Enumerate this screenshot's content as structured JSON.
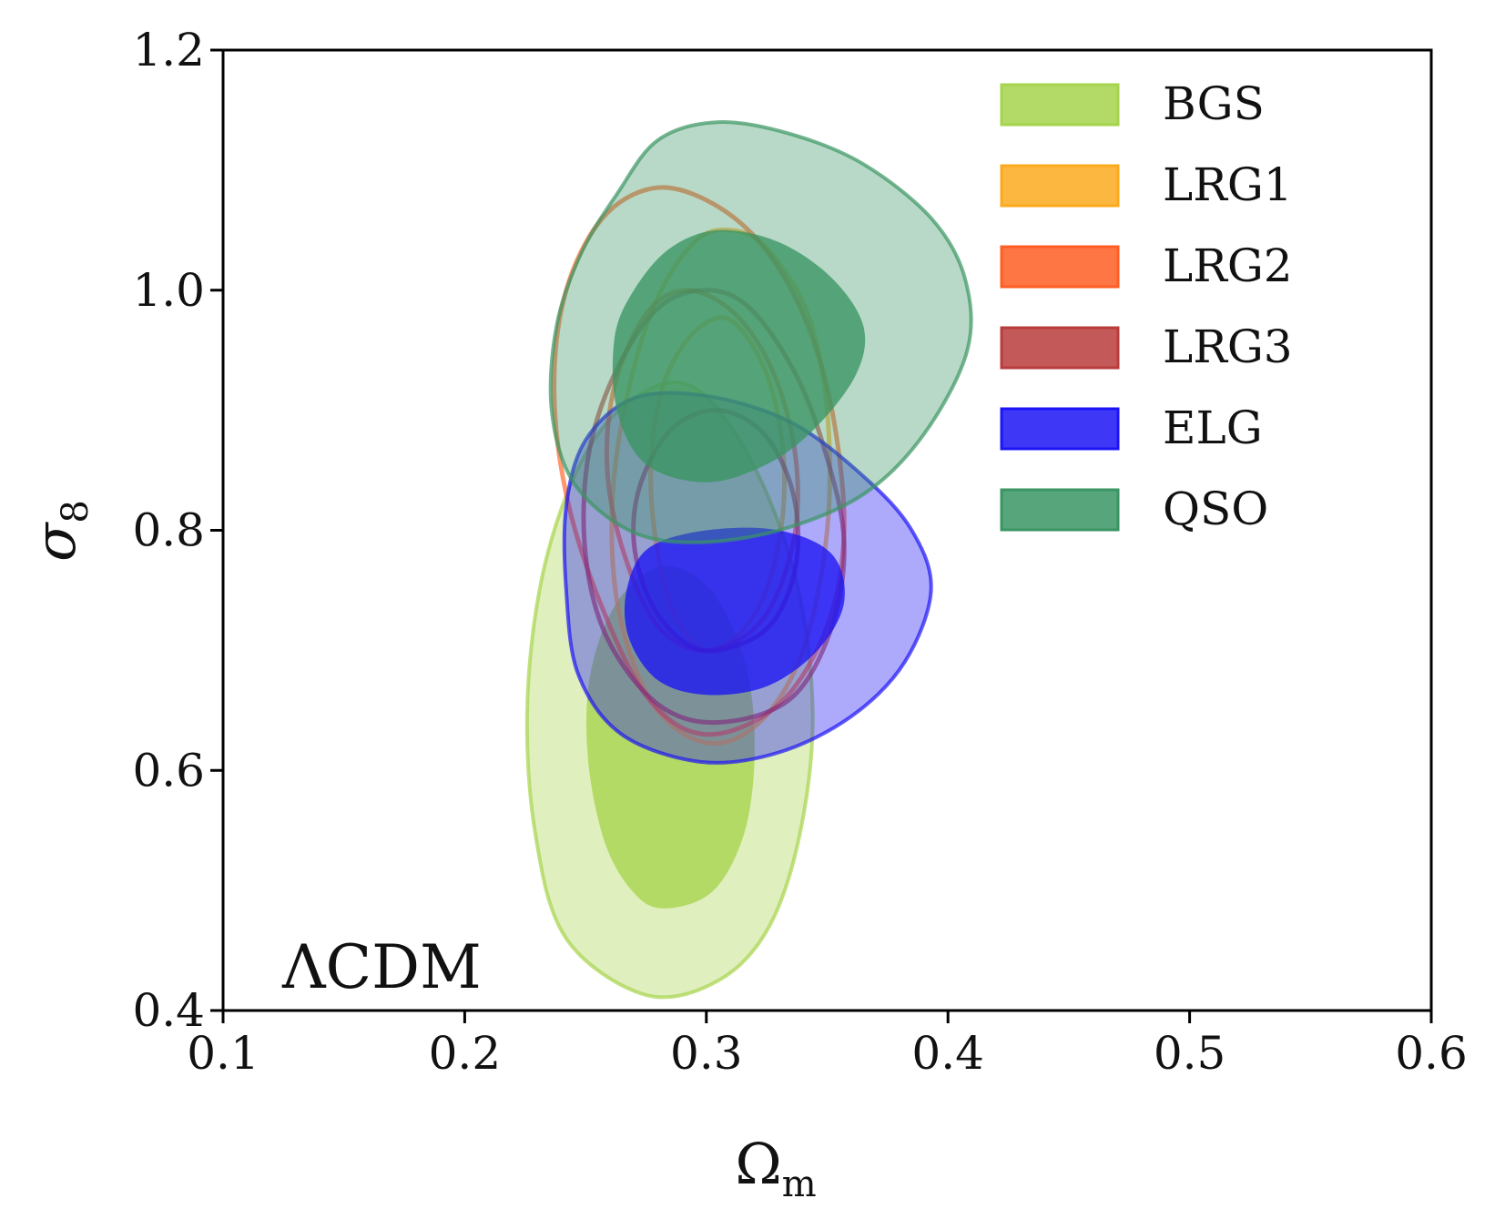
{
  "chart_data": {
    "type": "contour",
    "annotation": "ΛCDM",
    "xlabel": {
      "symbol": "Ω",
      "subscript": "m"
    },
    "ylabel": {
      "symbol": "σ",
      "subscript": "8"
    },
    "xlim": [
      0.1,
      0.6
    ],
    "ylim": [
      0.4,
      1.2
    ],
    "xticks": [
      0.1,
      0.2,
      0.3,
      0.4,
      0.5,
      0.6
    ],
    "xtick_labels": [
      "0.1",
      "0.2",
      "0.3",
      "0.4",
      "0.5",
      "0.6"
    ],
    "yticks": [
      0.4,
      0.6,
      0.8,
      1.0,
      1.2
    ],
    "ytick_labels": [
      "0.4",
      "0.6",
      "0.8",
      "1.0",
      "1.2"
    ],
    "grid": false,
    "legend_position": "top-right",
    "series": [
      {
        "name": "BGS",
        "color": "#a6d44c",
        "filled": true,
        "contours": [
          {
            "level": "outer",
            "points": [
              [
                0.275,
                0.413
              ],
              [
                0.305,
                0.425
              ],
              [
                0.326,
                0.47
              ],
              [
                0.339,
                0.55
              ],
              [
                0.344,
                0.65
              ],
              [
                0.337,
                0.76
              ],
              [
                0.318,
                0.86
              ],
              [
                0.294,
                0.92
              ],
              [
                0.27,
                0.91
              ],
              [
                0.249,
                0.86
              ],
              [
                0.233,
                0.77
              ],
              [
                0.226,
                0.66
              ],
              [
                0.229,
                0.55
              ],
              [
                0.242,
                0.46
              ]
            ]
          },
          {
            "level": "inner",
            "points": [
              [
                0.283,
                0.485
              ],
              [
                0.303,
                0.5
              ],
              [
                0.316,
                0.55
              ],
              [
                0.32,
                0.62
              ],
              [
                0.316,
                0.69
              ],
              [
                0.302,
                0.75
              ],
              [
                0.282,
                0.77
              ],
              [
                0.263,
                0.74
              ],
              [
                0.252,
                0.68
              ],
              [
                0.251,
                0.61
              ],
              [
                0.258,
                0.54
              ],
              [
                0.27,
                0.498
              ]
            ]
          }
        ]
      },
      {
        "name": "LRG1",
        "color": "#fbaa1e",
        "filled": false,
        "contours": [
          {
            "level": "outer",
            "points": [
              [
                0.3,
                0.623
              ],
              [
                0.322,
                0.64
              ],
              [
                0.34,
                0.7
              ],
              [
                0.35,
                0.8
              ],
              [
                0.35,
                0.9
              ],
              [
                0.342,
                0.98
              ],
              [
                0.325,
                1.035
              ],
              [
                0.31,
                1.05
              ],
              [
                0.295,
                1.04
              ],
              [
                0.279,
                0.99
              ],
              [
                0.267,
                0.91
              ],
              [
                0.261,
                0.82
              ],
              [
                0.264,
                0.73
              ],
              [
                0.278,
                0.655
              ]
            ]
          },
          {
            "level": "inner",
            "points": [
              [
                0.302,
                0.7
              ],
              [
                0.32,
                0.73
              ],
              [
                0.33,
                0.79
              ],
              [
                0.332,
                0.86
              ],
              [
                0.325,
                0.93
              ],
              [
                0.31,
                0.975
              ],
              [
                0.295,
                0.965
              ],
              [
                0.282,
                0.92
              ],
              [
                0.277,
                0.85
              ],
              [
                0.28,
                0.78
              ],
              [
                0.288,
                0.725
              ]
            ]
          }
        ]
      },
      {
        "name": "LRG2",
        "color": "#ff5e24",
        "filled": false,
        "contours": [
          {
            "level": "outer",
            "points": [
              [
                0.3,
                0.63
              ],
              [
                0.33,
                0.655
              ],
              [
                0.35,
                0.72
              ],
              [
                0.357,
                0.8
              ],
              [
                0.352,
                0.9
              ],
              [
                0.34,
                0.98
              ],
              [
                0.322,
                1.04
              ],
              [
                0.3,
                1.075
              ],
              [
                0.278,
                1.085
              ],
              [
                0.257,
                1.06
              ],
              [
                0.242,
                1.0
              ],
              [
                0.237,
                0.92
              ],
              [
                0.242,
                0.83
              ],
              [
                0.256,
                0.74
              ],
              [
                0.276,
                0.66
              ]
            ]
          },
          {
            "level": "inner",
            "points": [
              [
                0.3,
                0.7
              ],
              [
                0.323,
                0.725
              ],
              [
                0.336,
                0.79
              ],
              [
                0.337,
                0.86
              ],
              [
                0.328,
                0.93
              ],
              [
                0.312,
                0.98
              ],
              [
                0.292,
                1.0
              ],
              [
                0.275,
                0.98
              ],
              [
                0.262,
                0.92
              ],
              [
                0.259,
                0.85
              ],
              [
                0.266,
                0.78
              ],
              [
                0.28,
                0.72
              ]
            ]
          }
        ]
      },
      {
        "name": "LRG3",
        "color": "#b93c3c",
        "filled": false,
        "contours": [
          {
            "level": "outer",
            "points": [
              [
                0.305,
                0.64
              ],
              [
                0.335,
                0.66
              ],
              [
                0.352,
                0.72
              ],
              [
                0.357,
                0.79
              ],
              [
                0.35,
                0.86
              ],
              [
                0.337,
                0.93
              ],
              [
                0.318,
                0.985
              ],
              [
                0.3,
                1.0
              ],
              [
                0.28,
                0.985
              ],
              [
                0.262,
                0.93
              ],
              [
                0.251,
                0.86
              ],
              [
                0.25,
                0.78
              ],
              [
                0.259,
                0.71
              ],
              [
                0.28,
                0.655
              ]
            ]
          },
          {
            "level": "inner",
            "points": [
              [
                0.305,
                0.7
              ],
              [
                0.326,
                0.72
              ],
              [
                0.337,
                0.77
              ],
              [
                0.336,
                0.83
              ],
              [
                0.324,
                0.88
              ],
              [
                0.305,
                0.9
              ],
              [
                0.286,
                0.885
              ],
              [
                0.273,
                0.84
              ],
              [
                0.27,
                0.79
              ],
              [
                0.277,
                0.74
              ],
              [
                0.29,
                0.708
              ]
            ]
          }
        ]
      },
      {
        "name": "ELG",
        "color": "#1c14f5",
        "filled": true,
        "contours": [
          {
            "level": "outer",
            "points": [
              [
                0.298,
                0.607
              ],
              [
                0.33,
                0.615
              ],
              [
                0.36,
                0.645
              ],
              [
                0.382,
                0.69
              ],
              [
                0.393,
                0.75
              ],
              [
                0.385,
                0.8
              ],
              [
                0.365,
                0.845
              ],
              [
                0.335,
                0.89
              ],
              [
                0.3,
                0.912
              ],
              [
                0.27,
                0.91
              ],
              [
                0.25,
                0.875
              ],
              [
                0.242,
                0.82
              ],
              [
                0.242,
                0.75
              ],
              [
                0.247,
                0.68
              ],
              [
                0.265,
                0.63
              ]
            ]
          },
          {
            "level": "inner",
            "points": [
              [
                0.3,
                0.663
              ],
              [
                0.325,
                0.67
              ],
              [
                0.346,
                0.7
              ],
              [
                0.357,
                0.74
              ],
              [
                0.352,
                0.78
              ],
              [
                0.33,
                0.8
              ],
              [
                0.3,
                0.8
              ],
              [
                0.276,
                0.785
              ],
              [
                0.267,
                0.75
              ],
              [
                0.268,
                0.71
              ],
              [
                0.28,
                0.675
              ]
            ]
          }
        ]
      },
      {
        "name": "QSO",
        "color": "#3a9563",
        "filled": true,
        "contours": [
          {
            "level": "outer",
            "points": [
              [
                0.295,
                0.79
              ],
              [
                0.33,
                0.8
              ],
              [
                0.365,
                0.83
              ],
              [
                0.39,
                0.88
              ],
              [
                0.408,
                0.95
              ],
              [
                0.407,
                1.01
              ],
              [
                0.393,
                1.06
              ],
              [
                0.365,
                1.105
              ],
              [
                0.335,
                1.13
              ],
              [
                0.305,
                1.14
              ],
              [
                0.28,
                1.125
              ],
              [
                0.263,
                1.08
              ],
              [
                0.248,
                1.03
              ],
              [
                0.238,
                0.97
              ],
              [
                0.236,
                0.9
              ],
              [
                0.245,
                0.84
              ],
              [
                0.268,
                0.8
              ]
            ]
          },
          {
            "level": "inner",
            "points": [
              [
                0.3,
                0.84
              ],
              [
                0.325,
                0.855
              ],
              [
                0.345,
                0.885
              ],
              [
                0.362,
                0.93
              ],
              [
                0.365,
                0.97
              ],
              [
                0.352,
                1.01
              ],
              [
                0.33,
                1.04
              ],
              [
                0.305,
                1.05
              ],
              [
                0.285,
                1.035
              ],
              [
                0.27,
                1.0
              ],
              [
                0.262,
                0.96
              ],
              [
                0.263,
                0.9
              ],
              [
                0.275,
                0.855
              ]
            ]
          }
        ]
      }
    ]
  }
}
